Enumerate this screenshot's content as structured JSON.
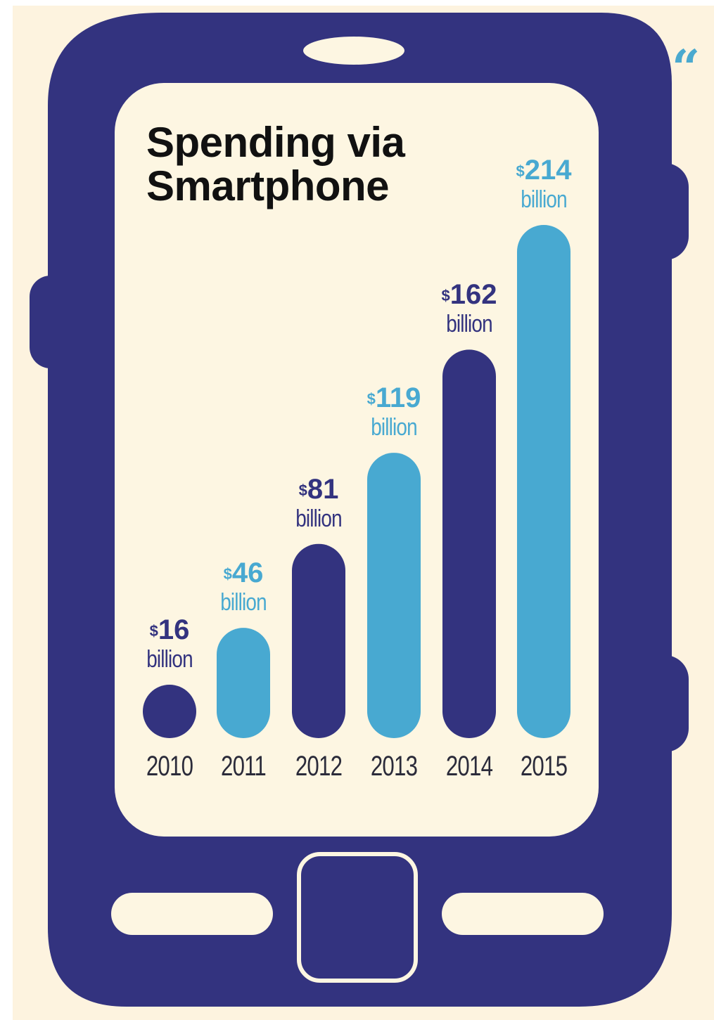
{
  "chart_data": {
    "type": "bar",
    "title_lines": [
      "Spending via",
      "Smartphone"
    ],
    "categories": [
      "2010",
      "2011",
      "2012",
      "2013",
      "2014",
      "2015"
    ],
    "values": [
      16,
      46,
      81,
      119,
      162,
      214
    ],
    "value_labels": [
      {
        "currency": "$",
        "amount": "16",
        "unit": "billion"
      },
      {
        "currency": "$",
        "amount": "46",
        "unit": "billion"
      },
      {
        "currency": "$",
        "amount": "81",
        "unit": "billion"
      },
      {
        "currency": "$",
        "amount": "119",
        "unit": "billion"
      },
      {
        "currency": "$",
        "amount": "162",
        "unit": "billion"
      },
      {
        "currency": "$",
        "amount": "214",
        "unit": "billion"
      }
    ],
    "ylim": [
      0,
      214
    ],
    "bar_colors": [
      "#33337f",
      "#48a9d1",
      "#33337f",
      "#48a9d1",
      "#33337f",
      "#48a9d1"
    ],
    "grid": false,
    "legend": "none"
  },
  "colors": {
    "phone_body": "#33337f",
    "screen": "#fdf6e2",
    "dark_bar": "#33337f",
    "light_bar": "#48a9d1",
    "year_text": "#2b2b3a"
  },
  "decor": {
    "quote_mark": "“",
    "icons": [
      "phone-body-icon",
      "speaker-slot-icon",
      "home-button-icon",
      "side-button-icon"
    ]
  }
}
